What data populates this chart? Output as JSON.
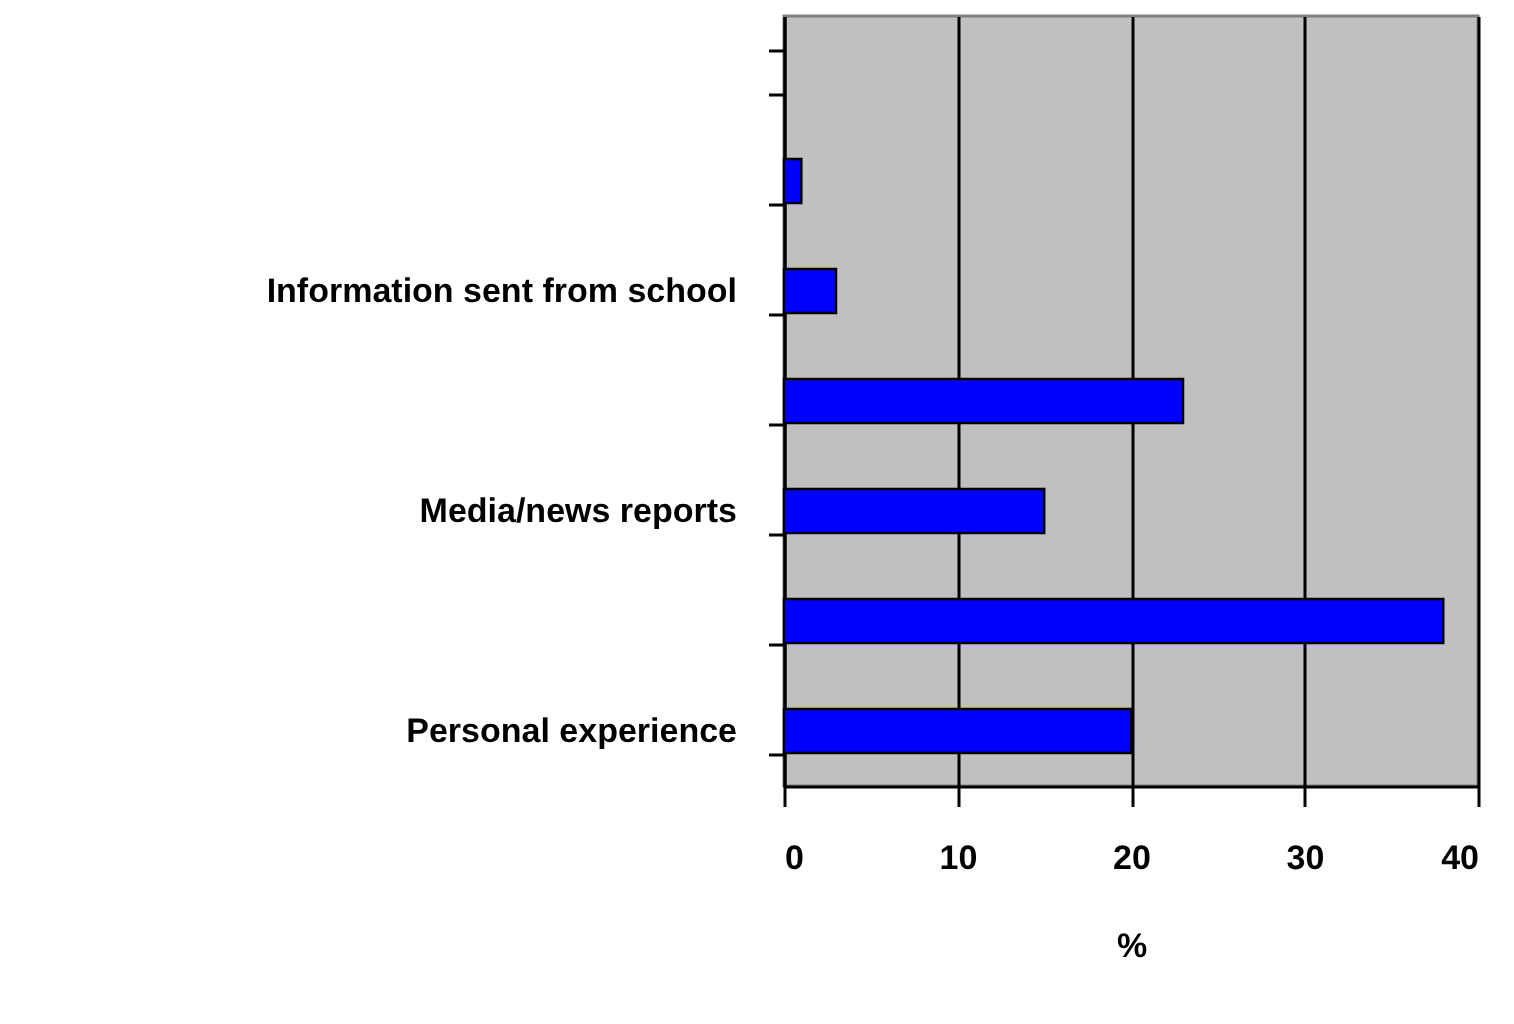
{
  "chart_data": {
    "type": "bar",
    "orientation": "horizontal",
    "xlabel": "%",
    "categories": [
      null,
      null,
      "Information sent from school",
      null,
      "Media/news reports",
      null,
      "Personal experience"
    ],
    "values": [
      null,
      1,
      3,
      23,
      15,
      38,
      20
    ],
    "color": "#0000ff",
    "xlim": [
      0,
      40
    ],
    "xticks": [
      0,
      10,
      20,
      30,
      40
    ],
    "grid": "x"
  }
}
